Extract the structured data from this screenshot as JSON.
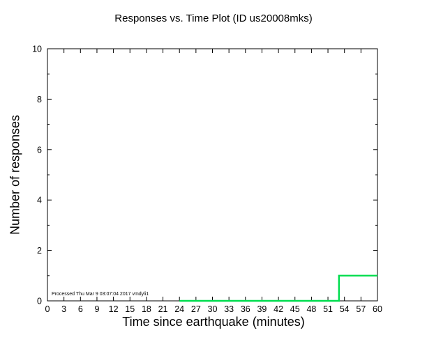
{
  "chart_data": {
    "type": "line",
    "title": "Responses vs. Time Plot (ID us20008mks)",
    "xlabel": "Time since earthquake (minutes)",
    "ylabel": "Number of responses",
    "xlim": [
      0,
      60
    ],
    "ylim": [
      0,
      10
    ],
    "x_ticks": [
      0,
      3,
      6,
      9,
      12,
      15,
      18,
      21,
      24,
      27,
      30,
      33,
      36,
      39,
      42,
      45,
      48,
      51,
      54,
      57,
      60
    ],
    "y_ticks_major": [
      0,
      2,
      4,
      6,
      8,
      10
    ],
    "y_ticks_minor": [
      1,
      3,
      5,
      7,
      9
    ],
    "grid": false,
    "legend": false,
    "axis_color": "#000000",
    "line_color": "#00dd4e",
    "series": [
      {
        "name": "responses",
        "x": [
          24,
          53,
          53,
          60
        ],
        "y": [
          0,
          0,
          1,
          1
        ]
      }
    ],
    "annotation": "Processed Thu Mar  9 03:07:04 2017 vmdyli1"
  }
}
